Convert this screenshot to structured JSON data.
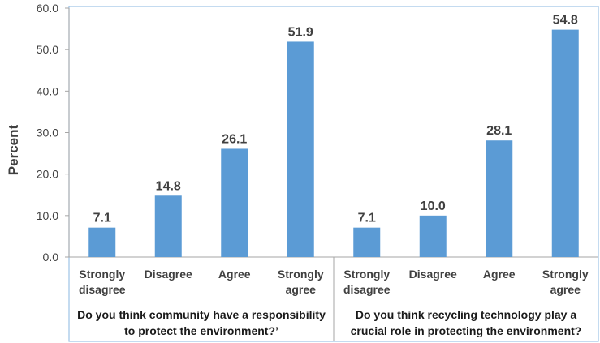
{
  "chart_data": {
    "type": "bar",
    "ylabel": "Percent",
    "ylim": [
      0,
      60
    ],
    "yticks": [
      "0.0",
      "10.0",
      "20.0",
      "30.0",
      "40.0",
      "50.0",
      "60.0"
    ],
    "colors": {
      "bar": "#5b9bd5",
      "axis": "#a6a6a6",
      "frame": "#9dc3e6"
    },
    "groups": [
      {
        "label_lines": [
          "Do you think community have a responsibility",
          "to protect the environment?’"
        ],
        "categories": [
          {
            "lines": [
              "Strongly",
              "disagree"
            ],
            "value": 7.1,
            "label": "7.1"
          },
          {
            "lines": [
              "Disagree"
            ],
            "value": 14.8,
            "label": "14.8"
          },
          {
            "lines": [
              "Agree"
            ],
            "value": 26.1,
            "label": "26.1"
          },
          {
            "lines": [
              "Strongly",
              "agree"
            ],
            "value": 51.9,
            "label": "51.9"
          }
        ]
      },
      {
        "label_lines": [
          "Do you think recycling technology play a",
          "crucial role in protecting the environment?"
        ],
        "categories": [
          {
            "lines": [
              "Strongly",
              "disagree"
            ],
            "value": 7.1,
            "label": "7.1"
          },
          {
            "lines": [
              "Disagree"
            ],
            "value": 10.0,
            "label": "10.0"
          },
          {
            "lines": [
              "Agree"
            ],
            "value": 28.1,
            "label": "28.1"
          },
          {
            "lines": [
              "Strongly",
              "agree"
            ],
            "value": 54.8,
            "label": "54.8"
          }
        ]
      }
    ]
  }
}
